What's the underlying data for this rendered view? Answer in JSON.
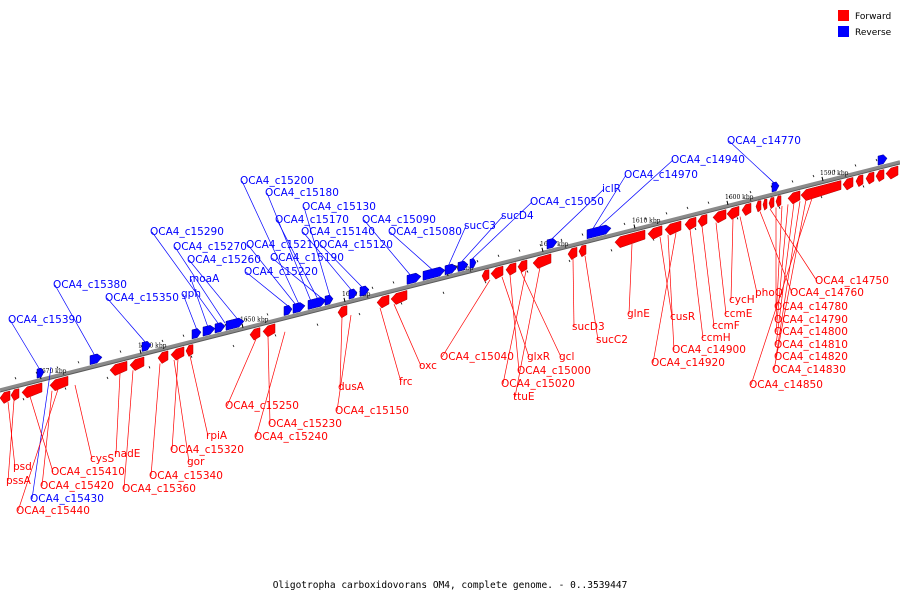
{
  "caption": "Oligotropha carboxidovorans OM4, complete genome. - 0..3539447",
  "legend": [
    {
      "label": "Forward",
      "color": "#ff0000"
    },
    {
      "label": "Reverse",
      "color": "#0000ff"
    }
  ],
  "colors": {
    "forward": "#ff0000",
    "reverse": "#0000ff",
    "backbone": "#7f7f7f"
  },
  "ticks": [
    "1670 kbp",
    "1660 kbp",
    "1650 kbp",
    "1640 kbp",
    "1630 kbp",
    "1620 kbp",
    "1610 kbp",
    "1600 kbp",
    "1590 kbp"
  ],
  "reverse_labels": [
    "OCA4_c15390",
    "OCA4_c15380",
    "OCA4_c15350",
    "gph",
    "moaA",
    "OCA4_c15290",
    "OCA4_c15270",
    "OCA4_c15260",
    "OCA4_c15220",
    "OCA4_c15210",
    "OCA4_c15200",
    "OCA4_c15180",
    "OCA4_c15170",
    "OCA4_c15190",
    "OCA4_c15130",
    "OCA4_c15140",
    "OCA4_c15120",
    "OCA4_c15090",
    "OCA4_c15080",
    "sucC3",
    "sucD4",
    "OCA4_c15050",
    "iclR",
    "OCA4_c14970",
    "OCA4_c14940",
    "OCA4_c14770",
    "OCA4_c15430"
  ],
  "forward_labels": [
    "psd",
    "pssA",
    "OCA4_c15410",
    "OCA4_c15420",
    "OCA4_c15440",
    "cysS",
    "nadE",
    "OCA4_c15360",
    "OCA4_c15340",
    "gor",
    "OCA4_c15320",
    "rpiA",
    "OCA4_c15250",
    "OCA4_c15230",
    "OCA4_c15240",
    "dusA",
    "OCA4_c15150",
    "frc",
    "oxc",
    "OCA4_c15040",
    "glxR",
    "OCA4_c15000",
    "gcl",
    "OCA4_c15020",
    "ttuE",
    "sucD3",
    "sucC2",
    "glnE",
    "cusR",
    "OCA4_c14900",
    "OCA4_c14920",
    "ccmH",
    "ccmF",
    "ccmE",
    "cycH",
    "phoQ",
    "OCA4_c14760",
    "OCA4_c14750",
    "OCA4_c14780",
    "OCA4_c14790",
    "OCA4_c14800",
    "OCA4_c14810",
    "OCA4_c14820",
    "OCA4_c14830",
    "OCA4_c14850"
  ]
}
